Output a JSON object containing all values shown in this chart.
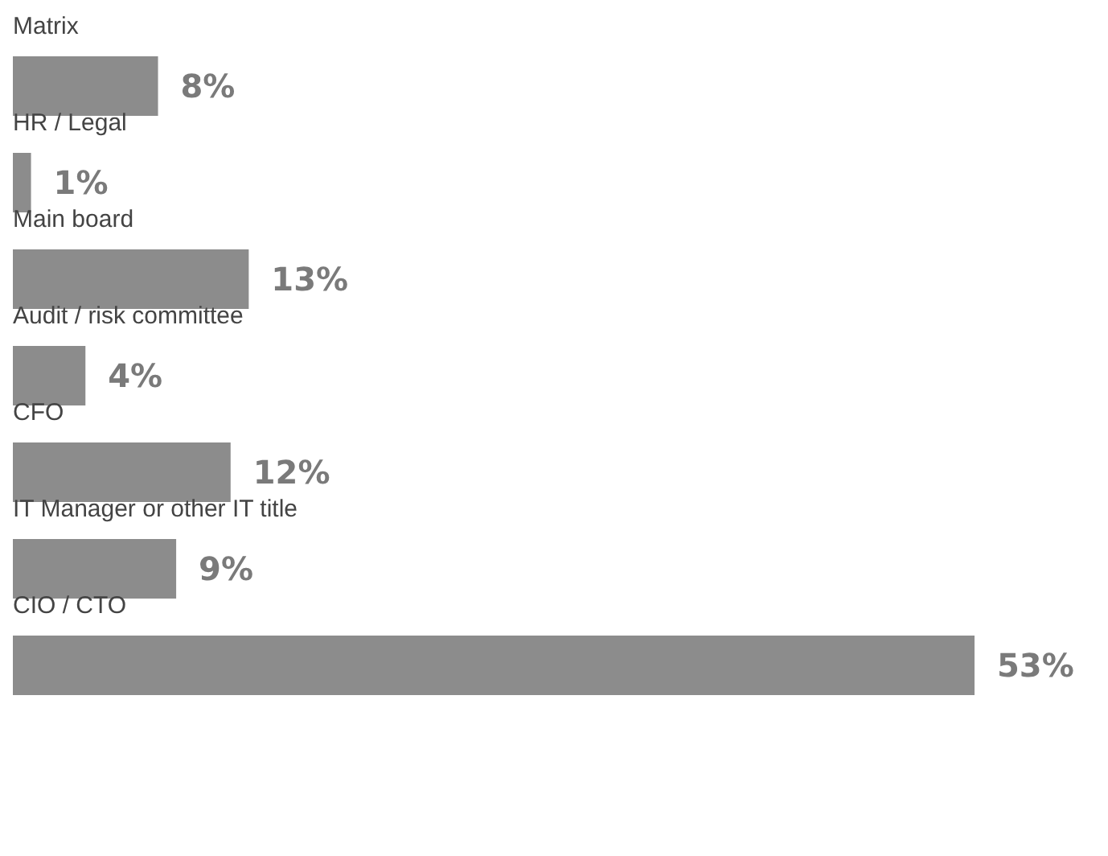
{
  "chart_data": {
    "type": "bar",
    "orientation": "horizontal",
    "categories": [
      "Matrix",
      "HR / Legal",
      "Main board",
      "Audit / risk committee",
      "CFO",
      "IT Manager or other IT title",
      "CIO / CTO"
    ],
    "values": [
      8,
      1,
      13,
      4,
      12,
      9,
      53
    ],
    "color": "#8c8c8c",
    "value_labels": [
      "8%",
      "1%",
      "13%",
      "4%",
      "12%",
      "9%",
      "53%"
    ]
  }
}
